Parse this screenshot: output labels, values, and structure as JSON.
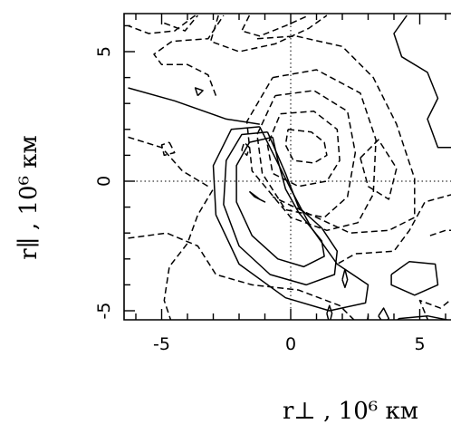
{
  "chart_data": {
    "type": "contour",
    "xlabel": "r⊥ , 10⁶ км",
    "ylabel": "r∥ , 10⁶ км",
    "xlim": [
      -6.3,
      6.3
    ],
    "ylim": [
      -5.8,
      6.4
    ],
    "xticks": [
      {
        "value": -5,
        "label": "-5"
      },
      {
        "value": 0,
        "label": "0"
      },
      {
        "value": 5,
        "label": "5"
      }
    ],
    "yticks": [
      {
        "value": -5,
        "label": "-5"
      },
      {
        "value": 0,
        "label": "0"
      },
      {
        "value": 5,
        "label": "5"
      }
    ],
    "reference_lines": {
      "x": 0,
      "y": 0,
      "style": "dotted"
    },
    "contours": [
      {
        "level": "positive",
        "style": "solid",
        "points": [
          [
            -1.6,
            -0.4
          ],
          [
            -1.2,
            -0.7
          ],
          [
            -1.0,
            -0.8
          ],
          [
            -1.4,
            -0.6
          ],
          [
            -1.6,
            -0.4
          ]
        ]
      },
      {
        "level": "positive",
        "style": "solid",
        "points": [
          [
            -0.7,
            1.7
          ],
          [
            -1.6,
            1.5
          ],
          [
            -2.1,
            0.6
          ],
          [
            -2.1,
            -0.8
          ],
          [
            -1.5,
            -2.1
          ],
          [
            -0.5,
            -3.0
          ],
          [
            0.5,
            -3.3
          ],
          [
            1.3,
            -2.9
          ],
          [
            1.2,
            -2.3
          ],
          [
            0.3,
            -1.2
          ],
          [
            -0.2,
            -0.3
          ],
          [
            -0.5,
            0.8
          ],
          [
            -0.7,
            1.7
          ]
        ]
      },
      {
        "level": "positive",
        "style": "solid",
        "points": [
          [
            -0.9,
            1.9
          ],
          [
            -1.9,
            1.8
          ],
          [
            -2.5,
            0.8
          ],
          [
            -2.6,
            -0.9
          ],
          [
            -2.0,
            -2.5
          ],
          [
            -0.8,
            -3.6
          ],
          [
            0.6,
            -4.0
          ],
          [
            1.7,
            -3.6
          ],
          [
            1.8,
            -2.7
          ],
          [
            1.2,
            -1.8
          ],
          [
            0.3,
            -1.0
          ],
          [
            -0.2,
            0.3
          ],
          [
            -0.9,
            1.9
          ]
        ]
      },
      {
        "level": "positive",
        "style": "solid",
        "points": [
          [
            -1.2,
            2.1
          ],
          [
            -2.3,
            2.0
          ],
          [
            -3.0,
            0.6
          ],
          [
            -2.9,
            -1.3
          ],
          [
            -2.0,
            -3.2
          ],
          [
            -0.2,
            -4.5
          ],
          [
            1.5,
            -5.0
          ],
          [
            2.9,
            -4.7
          ],
          [
            3.0,
            -4.0
          ],
          [
            1.8,
            -3.2
          ],
          [
            0.8,
            -1.8
          ],
          [
            0.0,
            -0.3
          ],
          [
            -1.2,
            2.1
          ]
        ]
      },
      {
        "level": "positive",
        "style": "solid",
        "points": [
          [
            -6.3,
            3.6
          ],
          [
            -4.5,
            3.1
          ],
          [
            -2.5,
            2.4
          ],
          [
            -1.2,
            2.2
          ]
        ]
      },
      {
        "level": "positive",
        "style": "solid",
        "points": [
          [
            4.5,
            6.4
          ],
          [
            4.0,
            5.7
          ],
          [
            4.3,
            4.8
          ],
          [
            5.3,
            4.2
          ],
          [
            5.7,
            3.2
          ],
          [
            5.3,
            2.4
          ],
          [
            5.7,
            1.3
          ],
          [
            6.3,
            1.3
          ]
        ]
      },
      {
        "level": "positive",
        "style": "solid",
        "points": [
          [
            3.9,
            -3.6
          ],
          [
            4.6,
            -3.1
          ],
          [
            5.6,
            -3.2
          ],
          [
            5.7,
            -4.0
          ],
          [
            4.8,
            -4.4
          ],
          [
            3.9,
            -4.0
          ],
          [
            3.9,
            -3.6
          ]
        ]
      },
      {
        "level": "positive",
        "style": "solid",
        "points": [
          [
            3.6,
            -5.8
          ],
          [
            4.2,
            -5.3
          ],
          [
            5.3,
            -5.2
          ],
          [
            6.3,
            -5.4
          ]
        ]
      },
      {
        "level": "positive",
        "style": "solid",
        "points": [
          [
            2.0,
            -3.8
          ],
          [
            2.1,
            -3.4
          ],
          [
            2.2,
            -3.8
          ],
          [
            2.1,
            -4.1
          ],
          [
            2.0,
            -3.8
          ]
        ]
      },
      {
        "level": "positive",
        "style": "solid",
        "points": [
          [
            1.4,
            -5.1
          ],
          [
            1.5,
            -4.8
          ],
          [
            1.6,
            -5.1
          ],
          [
            1.5,
            -5.5
          ],
          [
            1.4,
            -5.1
          ]
        ]
      },
      {
        "level": "positive",
        "style": "solid",
        "points": [
          [
            3.4,
            -5.2
          ],
          [
            3.6,
            -4.9
          ],
          [
            3.8,
            -5.3
          ],
          [
            3.6,
            -5.5
          ],
          [
            3.4,
            -5.2
          ]
        ]
      },
      {
        "level": "positive",
        "style": "solid",
        "points": [
          [
            -3.6,
            3.3
          ],
          [
            -3.7,
            3.6
          ],
          [
            -3.4,
            3.5
          ],
          [
            -3.6,
            3.3
          ]
        ]
      },
      {
        "level": "negative",
        "style": "dashed",
        "points": [
          [
            -0.1,
            2.0
          ],
          [
            0.8,
            1.9
          ],
          [
            1.3,
            1.5
          ],
          [
            1.4,
            1.0
          ],
          [
            0.9,
            0.7
          ],
          [
            0.1,
            0.8
          ],
          [
            -0.2,
            1.4
          ],
          [
            -0.1,
            2.0
          ]
        ]
      },
      {
        "level": "negative",
        "style": "dashed",
        "points": [
          [
            -0.4,
            2.6
          ],
          [
            0.9,
            2.7
          ],
          [
            1.8,
            2.0
          ],
          [
            1.9,
            0.8
          ],
          [
            1.4,
            0.0
          ],
          [
            0.3,
            -0.2
          ],
          [
            -0.7,
            0.3
          ],
          [
            -0.9,
            1.4
          ],
          [
            -0.4,
            2.6
          ]
        ]
      },
      {
        "level": "negative",
        "style": "dashed",
        "points": [
          [
            -0.6,
            3.3
          ],
          [
            0.9,
            3.5
          ],
          [
            2.2,
            2.7
          ],
          [
            2.5,
            1.1
          ],
          [
            2.2,
            -0.6
          ],
          [
            1.3,
            -1.4
          ],
          [
            -0.2,
            -1.1
          ],
          [
            -1.1,
            0.3
          ],
          [
            -1.3,
            1.8
          ],
          [
            -0.6,
            3.3
          ]
        ]
      },
      {
        "level": "negative",
        "style": "dashed",
        "points": [
          [
            -0.7,
            4.0
          ],
          [
            1.0,
            4.3
          ],
          [
            2.7,
            3.4
          ],
          [
            3.3,
            1.6
          ],
          [
            3.2,
            -0.5
          ],
          [
            2.6,
            -1.6
          ],
          [
            1.4,
            -1.9
          ],
          [
            0.0,
            -1.4
          ],
          [
            -1.5,
            0.4
          ],
          [
            -1.7,
            2.3
          ],
          [
            -0.7,
            4.0
          ]
        ]
      },
      {
        "level": "negative",
        "style": "dashed",
        "points": [
          [
            -1.3,
            5.5
          ],
          [
            0.2,
            5.6
          ],
          [
            2.0,
            5.2
          ],
          [
            3.2,
            4.0
          ],
          [
            4.1,
            2.2
          ],
          [
            4.8,
            0.1
          ],
          [
            4.8,
            -1.4
          ],
          [
            3.8,
            -1.9
          ],
          [
            2.3,
            -2.0
          ],
          [
            1.0,
            -1.4
          ],
          [
            -0.7,
            -0.6
          ]
        ]
      },
      {
        "level": "negative",
        "style": "dashed",
        "points": [
          [
            -2.8,
            6.4
          ],
          [
            -3.1,
            5.4
          ],
          [
            -2.0,
            5.0
          ],
          [
            -0.6,
            5.3
          ],
          [
            0.7,
            5.9
          ],
          [
            1.4,
            6.4
          ]
        ]
      },
      {
        "level": "negative",
        "style": "dashed",
        "points": [
          [
            -6.3,
            -2.2
          ],
          [
            -4.8,
            -2.0
          ],
          [
            -3.6,
            -2.5
          ],
          [
            -2.9,
            -3.6
          ],
          [
            -1.5,
            -4.0
          ],
          [
            0.3,
            -4.2
          ],
          [
            1.9,
            -4.8
          ],
          [
            2.6,
            -5.5
          ],
          [
            2.9,
            -5.8
          ]
        ]
      },
      {
        "level": "negative",
        "style": "dashed",
        "points": [
          [
            -4.5,
            -5.8
          ],
          [
            -4.9,
            -4.6
          ],
          [
            -4.7,
            -3.3
          ],
          [
            -4.0,
            -2.4
          ],
          [
            -3.6,
            -1.3
          ],
          [
            -3.0,
            -0.3
          ]
        ]
      },
      {
        "level": "negative",
        "style": "dashed",
        "points": [
          [
            -1.6,
            6.4
          ],
          [
            -1.9,
            5.8
          ],
          [
            -1.2,
            5.6
          ],
          [
            -0.2,
            6.0
          ],
          [
            0.7,
            6.4
          ]
        ]
      },
      {
        "level": "negative",
        "style": "dashed",
        "points": [
          [
            -6.3,
            1.7
          ],
          [
            -5.0,
            1.3
          ],
          [
            -4.2,
            0.4
          ],
          [
            -3.2,
            -0.2
          ]
        ]
      },
      {
        "level": "negative",
        "style": "dashed",
        "points": [
          [
            -4.9,
            6.1
          ],
          [
            -4.1,
            5.8
          ],
          [
            -3.6,
            6.4
          ]
        ]
      },
      {
        "level": "negative",
        "style": "dashed",
        "points": [
          [
            -2.9,
            3.3
          ],
          [
            -3.2,
            4.1
          ],
          [
            -4.0,
            4.5
          ],
          [
            -5.0,
            4.5
          ],
          [
            -5.3,
            4.9
          ],
          [
            -4.6,
            5.4
          ],
          [
            -3.2,
            5.5
          ],
          [
            -2.6,
            6.4
          ]
        ]
      },
      {
        "level": "negative",
        "style": "dashed",
        "points": [
          [
            -4.7,
            1.5
          ],
          [
            -4.5,
            1.1
          ],
          [
            -4.9,
            1.0
          ],
          [
            -5.0,
            1.4
          ],
          [
            -4.7,
            1.5
          ]
        ]
      },
      {
        "level": "negative",
        "style": "dashed",
        "points": [
          [
            -3.7,
            6.4
          ],
          [
            -4.5,
            5.8
          ],
          [
            -5.5,
            5.7
          ],
          [
            -6.3,
            6.0
          ]
        ]
      },
      {
        "level": "negative",
        "style": "dashed",
        "points": [
          [
            2.9,
            -5.8
          ],
          [
            3.0,
            -5.2
          ],
          [
            3.1,
            -5.8
          ]
        ]
      },
      {
        "level": "negative",
        "style": "dashed",
        "points": [
          [
            2.7,
            0.9
          ],
          [
            3.4,
            1.6
          ],
          [
            4.1,
            0.5
          ],
          [
            3.8,
            -0.7
          ],
          [
            3.0,
            -0.2
          ],
          [
            2.7,
            0.9
          ]
        ]
      },
      {
        "level": "negative",
        "style": "dashed",
        "points": [
          [
            -1.9,
            1.2
          ],
          [
            -1.8,
            1.5
          ],
          [
            -1.6,
            1.3
          ],
          [
            -1.7,
            1.0
          ],
          [
            -1.9,
            1.2
          ]
        ]
      },
      {
        "level": "negative",
        "style": "dashed",
        "points": [
          [
            5.5,
            -5.8
          ],
          [
            5.0,
            -4.6
          ],
          [
            5.8,
            -4.9
          ],
          [
            6.3,
            -4.5
          ]
        ]
      },
      {
        "level": "negative",
        "style": "dashed",
        "points": [
          [
            5.4,
            -2.1
          ],
          [
            6.0,
            -1.9
          ],
          [
            6.3,
            -1.9
          ]
        ]
      },
      {
        "level": "negative",
        "style": "dashed",
        "points": [
          [
            6.3,
            -0.5
          ],
          [
            5.2,
            -0.8
          ],
          [
            4.6,
            -1.9
          ],
          [
            4.0,
            -2.7
          ],
          [
            2.5,
            -2.8
          ],
          [
            1.8,
            -3.2
          ]
        ]
      }
    ]
  }
}
